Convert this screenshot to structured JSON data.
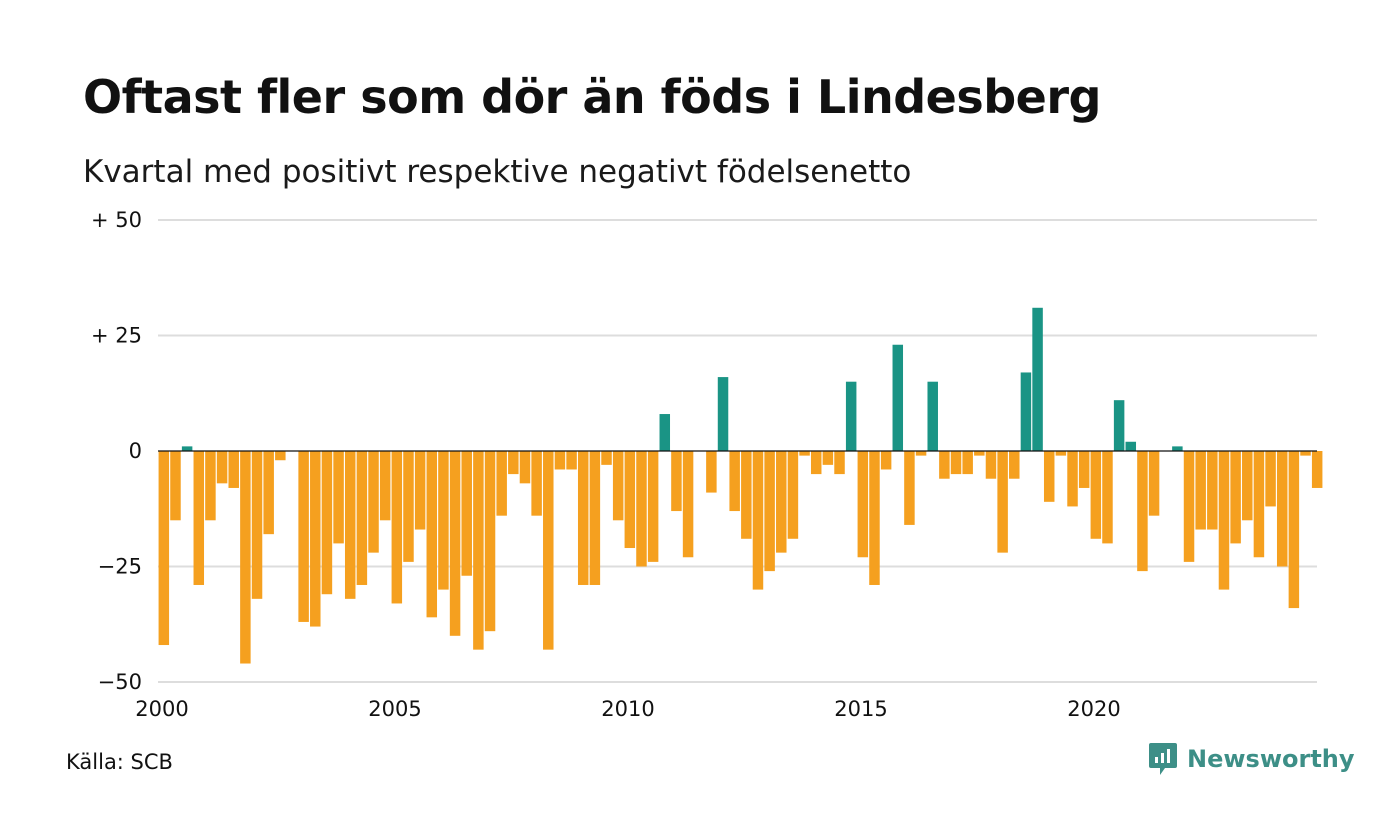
{
  "title": "Oftast fler som dör än föds i Lindesberg",
  "subtitle": "Kvartal med positivt respektive negativt födelsenetto",
  "source": "Källa: SCB",
  "brand": "Newsworthy",
  "colors": {
    "positive": "#1a9485",
    "negative": "#f5a01f",
    "grid": "#dddddd",
    "baseline": "#111111",
    "brand": "#3d8f87"
  },
  "chart_data": {
    "type": "bar",
    "title": "Oftast fler som dör än föds i Lindesberg",
    "subtitle": "Kvartal med positivt respektive negativt födelsenetto",
    "ylim": [
      -50,
      50
    ],
    "yticks": [
      {
        "value": 50,
        "label": "+ 50"
      },
      {
        "value": 25,
        "label": "+ 25"
      },
      {
        "value": 0,
        "label": "0"
      },
      {
        "value": -25,
        "label": "−25"
      },
      {
        "value": -50,
        "label": "−50"
      }
    ],
    "xticks": [
      "2000",
      "2005",
      "2010",
      "2015",
      "2020"
    ],
    "grid": true,
    "categories": [
      "2000K1",
      "2000K2",
      "2000K3",
      "2000K4",
      "2001K1",
      "2001K2",
      "2001K3",
      "2001K4",
      "2002K1",
      "2002K2",
      "2002K3",
      "2002K4",
      "2003K1",
      "2003K2",
      "2003K3",
      "2003K4",
      "2004K1",
      "2004K2",
      "2004K3",
      "2004K4",
      "2005K1",
      "2005K2",
      "2005K3",
      "2005K4",
      "2006K1",
      "2006K2",
      "2006K3",
      "2006K4",
      "2007K1",
      "2007K2",
      "2007K3",
      "2007K4",
      "2008K1",
      "2008K2",
      "2008K3",
      "2008K4",
      "2009K1",
      "2009K2",
      "2009K3",
      "2009K4",
      "2010K1",
      "2010K2",
      "2010K3",
      "2010K4",
      "2011K1",
      "2011K2",
      "2011K3",
      "2011K4",
      "2012K1",
      "2012K2",
      "2012K3",
      "2012K4",
      "2013K1",
      "2013K2",
      "2013K3",
      "2013K4",
      "2014K1",
      "2014K2",
      "2014K3",
      "2014K4",
      "2015K1",
      "2015K2",
      "2015K3",
      "2015K4",
      "2016K1",
      "2016K2",
      "2016K3",
      "2016K4",
      "2017K1",
      "2017K2",
      "2017K3",
      "2017K4",
      "2018K1",
      "2018K2",
      "2018K3",
      "2018K4",
      "2019K1",
      "2019K2",
      "2019K3",
      "2019K4",
      "2020K1",
      "2020K2",
      "2020K3",
      "2020K4",
      "2021K1",
      "2021K2",
      "2021K3",
      "2021K4",
      "2022K1",
      "2022K2",
      "2022K3",
      "2022K4",
      "2023K1",
      "2023K2",
      "2023K3",
      "2023K4",
      "2024K1",
      "2024K2",
      "2024K3",
      "2024K4"
    ],
    "values": [
      -42,
      -15,
      1,
      -29,
      -15,
      -7,
      -8,
      -46,
      -32,
      -18,
      -2,
      0,
      -37,
      -38,
      -31,
      -20,
      -32,
      -29,
      -22,
      -15,
      -33,
      -24,
      -17,
      -36,
      -30,
      -40,
      -27,
      -43,
      -39,
      -14,
      -5,
      -7,
      -14,
      -43,
      -4,
      -4,
      -29,
      -29,
      -3,
      -15,
      -21,
      -25,
      -24,
      8,
      -13,
      -23,
      0,
      -9,
      16,
      -13,
      -19,
      -30,
      -26,
      -22,
      -19,
      -1,
      -5,
      -3,
      -5,
      15,
      -23,
      -29,
      -4,
      23,
      -16,
      -1,
      15,
      -6,
      -5,
      -5,
      -1,
      -6,
      -22,
      -6,
      17,
      31,
      -11,
      -1,
      -12,
      -8,
      -19,
      -20,
      11,
      2,
      -26,
      -14,
      0,
      1,
      -24,
      -17,
      -17,
      -30,
      -20,
      -15,
      -23,
      -12,
      -25,
      -34,
      -1,
      -8
    ]
  }
}
